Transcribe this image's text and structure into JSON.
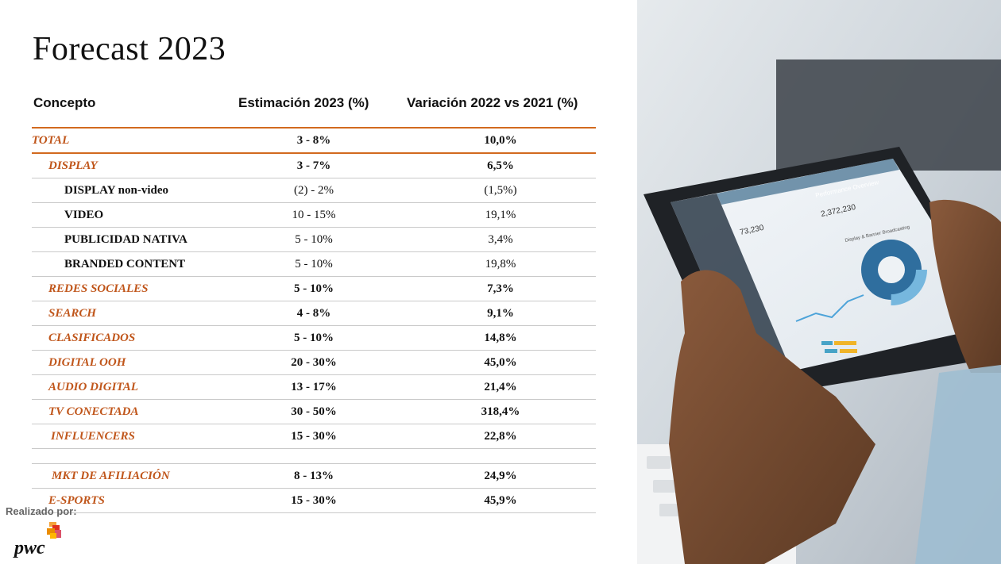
{
  "title": "Forecast 2023",
  "headers": {
    "concepto": "Concepto",
    "estimacion": "Estimación 2023 (%)",
    "variacion": "Variación 2022 vs 2021 (%)"
  },
  "rows": [
    {
      "name": "TOTAL",
      "est": "3 - 8%",
      "var": "10,0%"
    },
    {
      "name": "DISPLAY",
      "est": "3 - 7%",
      "var": "6,5%"
    },
    {
      "name": "DISPLAY non-video",
      "est": "(2) - 2%",
      "var": "(1,5%)"
    },
    {
      "name": "VIDEO",
      "est": "10 - 15%",
      "var": "19,1%"
    },
    {
      "name": "PUBLICIDAD NATIVA",
      "est": "5 - 10%",
      "var": "3,4%"
    },
    {
      "name": "BRANDED CONTENT",
      "est": "5 - 10%",
      "var": "19,8%"
    },
    {
      "name": "REDES SOCIALES",
      "est": "5 - 10%",
      "var": "7,3%"
    },
    {
      "name": "SEARCH",
      "est": "4 - 8%",
      "var": "9,1%"
    },
    {
      "name": "CLASIFICADOS",
      "est": "5 - 10%",
      "var": "14,8%"
    },
    {
      "name": "DIGITAL OOH",
      "est": "20 - 30%",
      "var": "45,0%"
    },
    {
      "name": "AUDIO DIGITAL",
      "est": "13 - 17%",
      "var": "21,4%"
    },
    {
      "name": "TV CONECTADA",
      "est": "30 - 50%",
      "var": "318,4%"
    },
    {
      "name": "INFLUENCERS",
      "est": "15 - 30%",
      "var": "22,8%"
    },
    {
      "name": "MKT DE AFILIACIÓN",
      "est": "8 - 13%",
      "var": "24,9%"
    },
    {
      "name": "E-SPORTS",
      "est": "15 - 30%",
      "var": "45,9%"
    }
  ],
  "footer": {
    "made_by": "Realizado por:",
    "logo_text": "pwc"
  },
  "colors": {
    "accent": "#c0561b",
    "rule": "#d2691e"
  },
  "tablet_screen": {
    "header": "Performance Overview",
    "stat_1": "73,230",
    "stat_2": "2,372,230",
    "chart_title": "Display & Banner Broadcasting"
  }
}
